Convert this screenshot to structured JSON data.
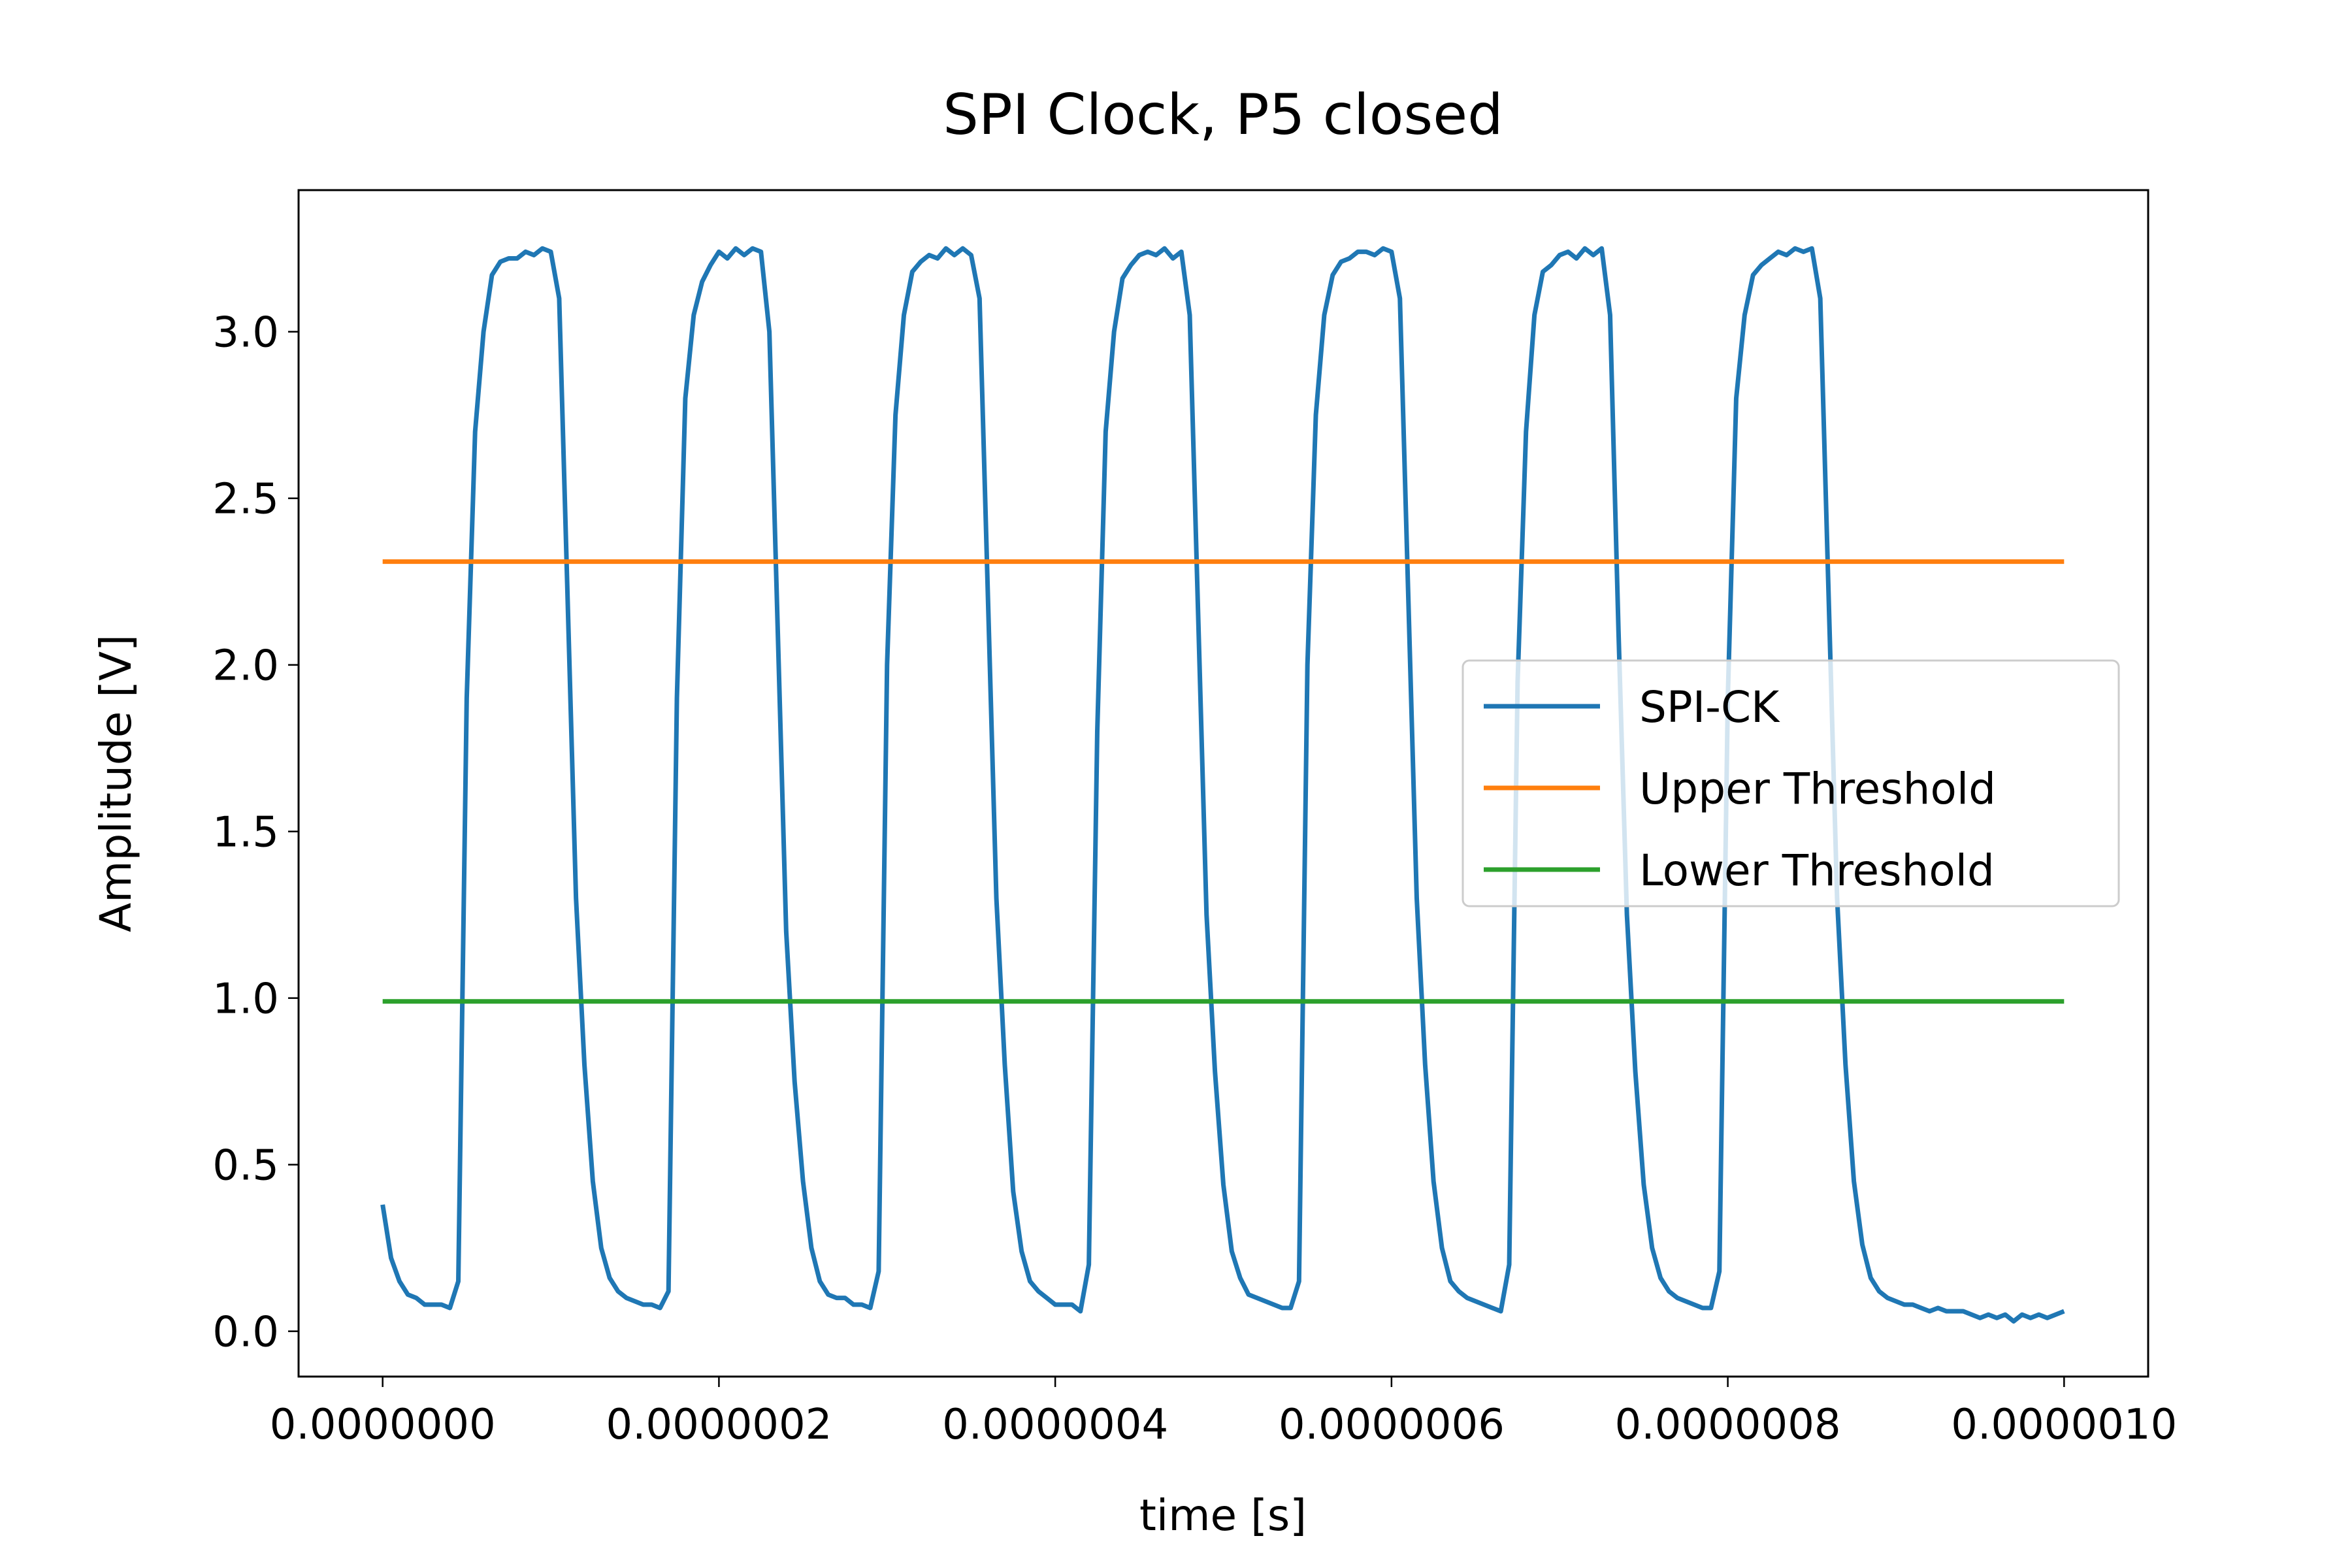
{
  "chart_data": {
    "type": "line",
    "title": "SPI Clock, P5 closed",
    "x_label": "time [s]",
    "y_label": "Amplitude [V]",
    "xlim": [
      -5e-08,
      1.05e-06
    ],
    "ylim": [
      -0.136,
      3.425
    ],
    "xticks": [
      {
        "value": 0,
        "label": "0.0000000"
      },
      {
        "value": 2e-07,
        "label": "0.0000002"
      },
      {
        "value": 4e-07,
        "label": "0.0000004"
      },
      {
        "value": 6e-07,
        "label": "0.0000006"
      },
      {
        "value": 8e-07,
        "label": "0.0000008"
      },
      {
        "value": 1e-06,
        "label": "0.0000010"
      }
    ],
    "yticks": [
      {
        "value": 0,
        "label": "0.0"
      },
      0.5,
      {
        "value": 1,
        "label": "1.0"
      },
      1.5,
      {
        "value": 2,
        "label": "2.0"
      },
      2.5,
      {
        "value": 3,
        "label": "3.0"
      }
    ],
    "grid": false,
    "legend_position": "center right",
    "series": [
      {
        "name": "SPI-CK",
        "color": "#1f77b4",
        "x": [
          0,
          5e-09,
          1e-08,
          1.5e-08,
          2e-08,
          2.5e-08,
          3e-08,
          3.5e-08,
          4e-08,
          4.5e-08,
          5e-08,
          5.5e-08,
          6e-08,
          6.5e-08,
          7e-08,
          7.5e-08,
          8e-08,
          8.5e-08,
          9e-08,
          9.5e-08,
          1e-07,
          1.05e-07,
          1.1e-07,
          1.15e-07,
          1.2e-07,
          1.25e-07,
          1.3e-07,
          1.35e-07,
          1.4e-07,
          1.45e-07,
          1.5e-07,
          1.55e-07,
          1.6e-07,
          1.65e-07,
          1.7e-07,
          1.75e-07,
          1.8e-07,
          1.85e-07,
          1.9e-07,
          1.95e-07,
          2e-07,
          2.05e-07,
          2.1e-07,
          2.15e-07,
          2.2e-07,
          2.25e-07,
          2.3e-07,
          2.35e-07,
          2.4e-07,
          2.45e-07,
          2.5e-07,
          2.55e-07,
          2.6e-07,
          2.65e-07,
          2.7e-07,
          2.75e-07,
          2.8e-07,
          2.85e-07,
          2.9e-07,
          2.95e-07,
          3e-07,
          3.05e-07,
          3.1e-07,
          3.15e-07,
          3.2e-07,
          3.25e-07,
          3.3e-07,
          3.35e-07,
          3.4e-07,
          3.45e-07,
          3.5e-07,
          3.55e-07,
          3.6e-07,
          3.65e-07,
          3.7e-07,
          3.75e-07,
          3.8e-07,
          3.85e-07,
          3.9e-07,
          3.95e-07,
          4e-07,
          4.05e-07,
          4.1e-07,
          4.15e-07,
          4.2e-07,
          4.25e-07,
          4.3e-07,
          4.35e-07,
          4.4e-07,
          4.45e-07,
          4.5e-07,
          4.55e-07,
          4.6e-07,
          4.65e-07,
          4.7e-07,
          4.75e-07,
          4.8e-07,
          4.85e-07,
          4.9e-07,
          4.95e-07,
          5e-07,
          5.05e-07,
          5.1e-07,
          5.15e-07,
          5.2e-07,
          5.25e-07,
          5.3e-07,
          5.35e-07,
          5.4e-07,
          5.45e-07,
          5.5e-07,
          5.55e-07,
          5.6e-07,
          5.65e-07,
          5.7e-07,
          5.75e-07,
          5.8e-07,
          5.85e-07,
          5.9e-07,
          5.95e-07,
          6e-07,
          6.05e-07,
          6.1e-07,
          6.15e-07,
          6.2e-07,
          6.25e-07,
          6.3e-07,
          6.35e-07,
          6.4e-07,
          6.45e-07,
          6.5e-07,
          6.55e-07,
          6.6e-07,
          6.65e-07,
          6.7e-07,
          6.75e-07,
          6.8e-07,
          6.85e-07,
          6.9e-07,
          6.95e-07,
          7e-07,
          7.05e-07,
          7.1e-07,
          7.15e-07,
          7.2e-07,
          7.25e-07,
          7.3e-07,
          7.35e-07,
          7.4e-07,
          7.45e-07,
          7.5e-07,
          7.55e-07,
          7.6e-07,
          7.65e-07,
          7.7e-07,
          7.75e-07,
          7.8e-07,
          7.85e-07,
          7.9e-07,
          7.95e-07,
          8e-07,
          8.05e-07,
          8.1e-07,
          8.15e-07,
          8.2e-07,
          8.25e-07,
          8.3e-07,
          8.35e-07,
          8.4e-07,
          8.45e-07,
          8.5e-07,
          8.55e-07,
          8.6e-07,
          8.65e-07,
          8.7e-07,
          8.75e-07,
          8.8e-07,
          8.85e-07,
          8.9e-07,
          8.95e-07,
          9e-07,
          9.05e-07,
          9.1e-07,
          9.15e-07,
          9.2e-07,
          9.25e-07,
          9.3e-07,
          9.35e-07,
          9.4e-07,
          9.45e-07,
          9.5e-07,
          9.55e-07,
          9.6e-07,
          9.65e-07,
          9.7e-07,
          9.75e-07,
          9.8e-07,
          9.85e-07,
          9.9e-07,
          9.95e-07,
          1e-06
        ],
        "values": [
          0.38,
          0.22,
          0.15,
          0.11,
          0.1,
          0.08,
          0.08,
          0.08,
          0.07,
          0.15,
          1.9,
          2.7,
          3.0,
          3.17,
          3.21,
          3.22,
          3.22,
          3.24,
          3.23,
          3.25,
          3.24,
          3.1,
          2.2,
          1.3,
          0.8,
          0.45,
          0.25,
          0.16,
          0.12,
          0.1,
          0.09,
          0.08,
          0.08,
          0.07,
          0.12,
          1.9,
          2.8,
          3.05,
          3.15,
          3.2,
          3.24,
          3.22,
          3.25,
          3.23,
          3.25,
          3.24,
          3.0,
          2.1,
          1.2,
          0.75,
          0.45,
          0.25,
          0.15,
          0.11,
          0.1,
          0.1,
          0.08,
          0.08,
          0.07,
          0.18,
          2.0,
          2.75,
          3.05,
          3.18,
          3.21,
          3.23,
          3.22,
          3.25,
          3.23,
          3.25,
          3.23,
          3.1,
          2.2,
          1.3,
          0.8,
          0.42,
          0.24,
          0.15,
          0.12,
          0.1,
          0.08,
          0.08,
          0.08,
          0.06,
          0.2,
          1.8,
          2.7,
          3.0,
          3.16,
          3.2,
          3.23,
          3.24,
          3.23,
          3.25,
          3.22,
          3.24,
          3.05,
          2.15,
          1.25,
          0.78,
          0.44,
          0.24,
          0.16,
          0.11,
          0.1,
          0.09,
          0.08,
          0.07,
          0.07,
          0.15,
          2.0,
          2.75,
          3.05,
          3.17,
          3.21,
          3.22,
          3.24,
          3.24,
          3.23,
          3.25,
          3.24,
          3.1,
          2.2,
          1.3,
          0.8,
          0.45,
          0.25,
          0.15,
          0.12,
          0.1,
          0.09,
          0.08,
          0.07,
          0.06,
          0.2,
          1.95,
          2.7,
          3.05,
          3.18,
          3.2,
          3.23,
          3.24,
          3.22,
          3.25,
          3.23,
          3.25,
          3.05,
          2.1,
          1.25,
          0.78,
          0.44,
          0.25,
          0.16,
          0.12,
          0.1,
          0.09,
          0.08,
          0.07,
          0.07,
          0.18,
          1.9,
          2.8,
          3.05,
          3.17,
          3.2,
          3.22,
          3.24,
          3.23,
          3.25,
          3.24,
          3.25,
          3.1,
          2.2,
          1.3,
          0.8,
          0.45,
          0.26,
          0.16,
          0.12,
          0.1,
          0.09,
          0.08,
          0.08,
          0.07,
          0.06,
          0.07,
          0.06,
          0.06,
          0.06,
          0.05,
          0.04,
          0.05,
          0.04,
          0.05,
          0.03,
          0.05,
          0.04,
          0.05,
          0.04,
          0.05,
          0.06
        ]
      },
      {
        "name": "Upper Threshold",
        "color": "#ff7f0e",
        "x": [
          0,
          1e-06
        ],
        "values": [
          2.31,
          2.31
        ]
      },
      {
        "name": "Lower Threshold",
        "color": "#2ca02c",
        "x": [
          0,
          1e-06
        ],
        "values": [
          0.99,
          0.99
        ]
      }
    ]
  }
}
